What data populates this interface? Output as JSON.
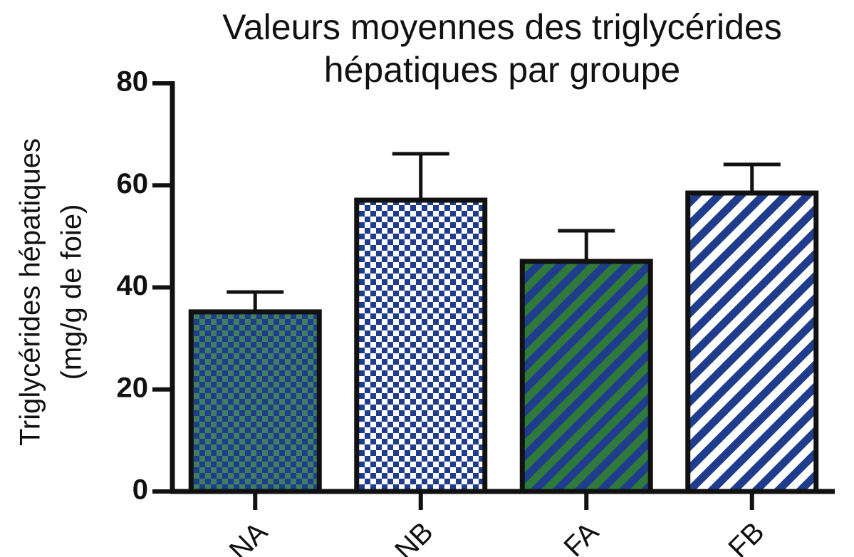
{
  "chart_data": {
    "type": "bar",
    "title": [
      "Valeurs moyennes des triglycérides",
      "hépatiques par groupe"
    ],
    "ylabel": [
      "Triglycérides hépatiques",
      "(mg/g de foie)"
    ],
    "categories": [
      "NA",
      "NB",
      "FA",
      "FB"
    ],
    "values": [
      35.2,
      57.1,
      45.1,
      58.5
    ],
    "errors": [
      3.9,
      9.1,
      6.0,
      5.6
    ],
    "patterns": [
      "checker",
      "checker",
      "stripes",
      "stripes"
    ],
    "colors": [
      [
        "#1f3d8c",
        "#3f7f5f"
      ],
      [
        "#1f3d8c",
        "#ffffff"
      ],
      [
        "#1f3d8c",
        "#2f7a3a"
      ],
      [
        "#1f3d8c",
        "#ffffff"
      ]
    ],
    "ylim": [
      0,
      80
    ],
    "yticks": [
      0,
      20,
      40,
      60,
      80
    ]
  }
}
